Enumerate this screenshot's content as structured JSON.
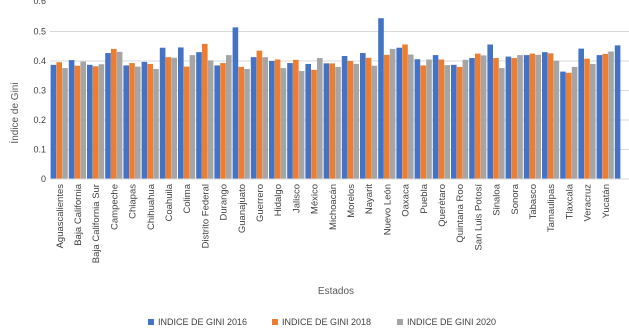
{
  "chart_data": {
    "type": "bar",
    "title": "",
    "xlabel": "Estados",
    "ylabel": "Índice de Gini",
    "ylim": [
      0,
      0.6
    ],
    "yticks": [
      0,
      0.1,
      0.2,
      0.3,
      0.4,
      0.5,
      0.6
    ],
    "grid": true,
    "legend_position": "bottom",
    "categories": [
      "Aguascalientes",
      "Baja California",
      "Baja California Sur",
      "Campeche",
      "Chiapas",
      "Chihuahua",
      "Coahuila",
      "Colima",
      "Distrito Federal",
      "Durango",
      "Guanajuato",
      "Guerrero",
      "Hidalgo",
      "Jalisco",
      "México",
      "Michoacán",
      "Morelos",
      "Nayarit",
      "Nuevo León",
      "Oaxaca",
      "Puebla",
      "Querétaro",
      "Quintana Roo",
      "San Luis Potosí",
      "Sinaloa",
      "Sonora",
      "Tabasco",
      "Tamaulipas",
      "Tlaxcala",
      "Veracruz",
      "Yucatán",
      ""
    ],
    "series": [
      {
        "name": "INDICE DE GINI 2016",
        "color": "#4472c4",
        "values": [
          0.387,
          0.403,
          0.387,
          0.427,
          0.385,
          0.397,
          0.445,
          0.446,
          0.43,
          0.385,
          0.514,
          0.413,
          0.4,
          0.393,
          0.39,
          0.392,
          0.417,
          0.427,
          0.545,
          0.445,
          0.406,
          0.42,
          0.387,
          0.41,
          0.456,
          0.415,
          0.42,
          0.43,
          0.364,
          0.442,
          0.42,
          0.453
        ]
      },
      {
        "name": "INDICE DE GINI 2018",
        "color": "#ed7d31",
        "values": [
          0.396,
          0.384,
          0.382,
          0.441,
          0.393,
          0.39,
          0.413,
          0.381,
          0.458,
          0.393,
          0.38,
          0.435,
          0.405,
          0.404,
          0.37,
          0.392,
          0.4,
          0.411,
          0.421,
          0.456,
          0.385,
          0.405,
          0.38,
          0.425,
          0.41,
          0.41,
          0.425,
          0.426,
          0.36,
          0.408,
          0.424,
          null
        ]
      },
      {
        "name": "INDICE DE GINI 2020",
        "color": "#a5a5a5",
        "values": [
          0.376,
          0.398,
          0.389,
          0.431,
          0.381,
          0.373,
          0.411,
          0.42,
          0.402,
          0.42,
          0.373,
          0.413,
          0.376,
          0.366,
          0.41,
          0.38,
          0.39,
          0.384,
          0.441,
          0.422,
          0.405,
          0.386,
          0.404,
          0.419,
          0.376,
          0.42,
          0.421,
          0.401,
          0.38,
          0.39,
          0.432,
          null
        ]
      }
    ]
  }
}
